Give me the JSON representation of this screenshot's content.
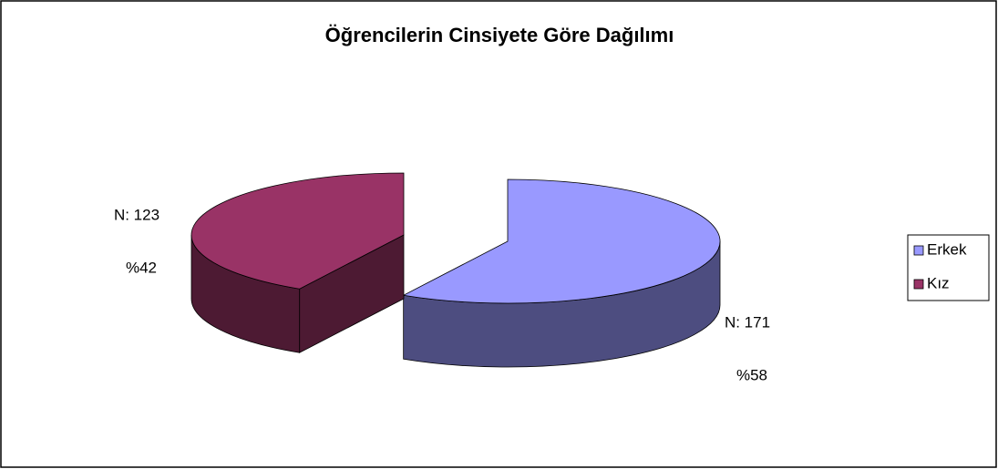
{
  "chart_data": {
    "type": "pie3d",
    "title": "Öğrencilerin Cinsiyete Göre Dağılımı",
    "categories": [
      "Erkek",
      "Kız"
    ],
    "values": [
      171,
      123
    ],
    "value_labels": [
      "N: 171",
      "N: 123"
    ],
    "percentages": [
      58,
      42
    ],
    "percentage_labels": [
      "%58",
      "%42"
    ],
    "colors": [
      "#9999ff",
      "#993366"
    ],
    "side_colors": [
      "#4d4d80",
      "#4d1a33"
    ],
    "legend": "right"
  }
}
